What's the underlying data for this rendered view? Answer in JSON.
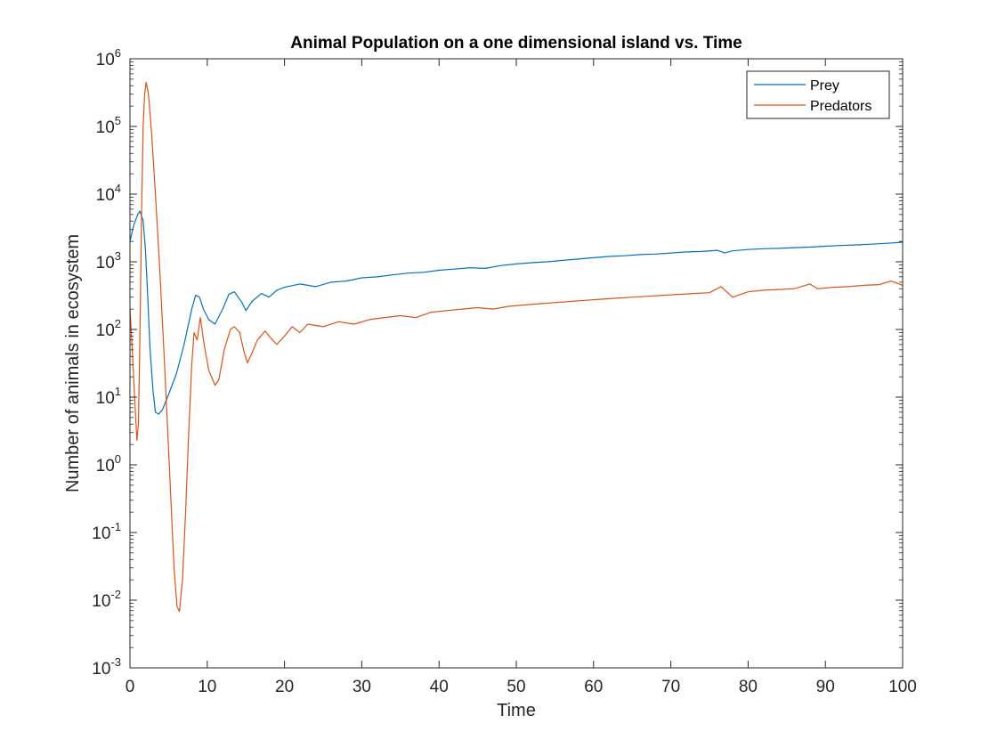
{
  "chart_data": {
    "type": "line",
    "title": "Animal Population on a one dimensional island vs. Time",
    "xlabel": "Time",
    "ylabel": "Number of animals in ecosystem",
    "xlim": [
      0,
      100
    ],
    "ylim": [
      0.001,
      1000000
    ],
    "yscale": "log",
    "grid": false,
    "legend_position": "top-right",
    "x_ticks": [
      0,
      10,
      20,
      30,
      40,
      50,
      60,
      70,
      80,
      90,
      100
    ],
    "y_ticks": [
      {
        "base": "10",
        "exp": "-3",
        "value": 0.001
      },
      {
        "base": "10",
        "exp": "-2",
        "value": 0.01
      },
      {
        "base": "10",
        "exp": "-1",
        "value": 0.1
      },
      {
        "base": "10",
        "exp": "0",
        "value": 1
      },
      {
        "base": "10",
        "exp": "1",
        "value": 10
      },
      {
        "base": "10",
        "exp": "2",
        "value": 100
      },
      {
        "base": "10",
        "exp": "3",
        "value": 1000
      },
      {
        "base": "10",
        "exp": "4",
        "value": 10000
      },
      {
        "base": "10",
        "exp": "5",
        "value": 100000
      },
      {
        "base": "10",
        "exp": "6",
        "value": 1000000
      }
    ],
    "series": [
      {
        "name": "Prey",
        "color": "#0072BD",
        "points": [
          [
            0,
            2000
          ],
          [
            0.5,
            3500
          ],
          [
            1,
            5000
          ],
          [
            1.3,
            5600
          ],
          [
            1.7,
            4000
          ],
          [
            2.0,
            1500
          ],
          [
            2.3,
            300
          ],
          [
            2.6,
            50
          ],
          [
            3.0,
            12
          ],
          [
            3.3,
            6
          ],
          [
            3.7,
            5.6
          ],
          [
            4.2,
            6.5
          ],
          [
            5,
            11
          ],
          [
            6,
            22
          ],
          [
            7,
            60
          ],
          [
            8,
            200
          ],
          [
            8.5,
            320
          ],
          [
            9,
            300
          ],
          [
            9.5,
            200
          ],
          [
            10.2,
            140
          ],
          [
            11,
            120
          ],
          [
            12,
            200
          ],
          [
            12.8,
            330
          ],
          [
            13.5,
            360
          ],
          [
            14.5,
            250
          ],
          [
            15,
            190
          ],
          [
            15.8,
            260
          ],
          [
            17,
            340
          ],
          [
            18,
            300
          ],
          [
            19,
            380
          ],
          [
            20,
            420
          ],
          [
            22,
            470
          ],
          [
            24,
            430
          ],
          [
            26,
            500
          ],
          [
            28,
            520
          ],
          [
            30,
            580
          ],
          [
            32,
            600
          ],
          [
            34,
            640
          ],
          [
            36,
            680
          ],
          [
            38,
            700
          ],
          [
            40,
            750
          ],
          [
            42,
            780
          ],
          [
            44,
            820
          ],
          [
            46,
            800
          ],
          [
            48,
            880
          ],
          [
            50,
            930
          ],
          [
            52,
            970
          ],
          [
            54,
            1000
          ],
          [
            56,
            1050
          ],
          [
            58,
            1100
          ],
          [
            60,
            1150
          ],
          [
            62,
            1200
          ],
          [
            64,
            1230
          ],
          [
            66,
            1280
          ],
          [
            68,
            1300
          ],
          [
            70,
            1350
          ],
          [
            72,
            1400
          ],
          [
            74,
            1420
          ],
          [
            76,
            1480
          ],
          [
            77,
            1350
          ],
          [
            78,
            1450
          ],
          [
            80,
            1520
          ],
          [
            82,
            1560
          ],
          [
            84,
            1580
          ],
          [
            86,
            1620
          ],
          [
            88,
            1650
          ],
          [
            90,
            1700
          ],
          [
            92,
            1740
          ],
          [
            94,
            1780
          ],
          [
            96,
            1820
          ],
          [
            98,
            1880
          ],
          [
            100,
            1950
          ]
        ]
      },
      {
        "name": "Predators",
        "color": "#D95319",
        "points": [
          [
            0,
            200
          ],
          [
            0.3,
            50
          ],
          [
            0.6,
            10
          ],
          [
            0.9,
            2.3
          ],
          [
            1.1,
            4
          ],
          [
            1.3,
            100
          ],
          [
            1.5,
            5000
          ],
          [
            1.7,
            100000
          ],
          [
            1.9,
            300000
          ],
          [
            2.1,
            450000
          ],
          [
            2.4,
            300000
          ],
          [
            2.8,
            80000
          ],
          [
            3.3,
            10000
          ],
          [
            3.8,
            1000
          ],
          [
            4.3,
            80
          ],
          [
            4.8,
            5
          ],
          [
            5.3,
            0.3
          ],
          [
            5.7,
            0.03
          ],
          [
            6.1,
            0.008
          ],
          [
            6.4,
            0.0068
          ],
          [
            6.8,
            0.02
          ],
          [
            7.2,
            0.2
          ],
          [
            7.6,
            3
          ],
          [
            8.0,
            30
          ],
          [
            8.3,
            90
          ],
          [
            8.7,
            70
          ],
          [
            9.1,
            150
          ],
          [
            9.6,
            60
          ],
          [
            10.2,
            25
          ],
          [
            11,
            15
          ],
          [
            11.5,
            18
          ],
          [
            12.2,
            50
          ],
          [
            13,
            100
          ],
          [
            13.5,
            110
          ],
          [
            14.2,
            90
          ],
          [
            14.7,
            50
          ],
          [
            15.2,
            32
          ],
          [
            15.8,
            45
          ],
          [
            16.5,
            70
          ],
          [
            17.5,
            95
          ],
          [
            18,
            80
          ],
          [
            19,
            60
          ],
          [
            20,
            80
          ],
          [
            21,
            110
          ],
          [
            22,
            90
          ],
          [
            23,
            120
          ],
          [
            25,
            110
          ],
          [
            27,
            130
          ],
          [
            29,
            120
          ],
          [
            31,
            140
          ],
          [
            33,
            150
          ],
          [
            35,
            160
          ],
          [
            37,
            150
          ],
          [
            39,
            180
          ],
          [
            41,
            190
          ],
          [
            43,
            200
          ],
          [
            45,
            210
          ],
          [
            47,
            200
          ],
          [
            49,
            220
          ],
          [
            51,
            230
          ],
          [
            53,
            240
          ],
          [
            55,
            250
          ],
          [
            57,
            260
          ],
          [
            59,
            270
          ],
          [
            61,
            280
          ],
          [
            63,
            290
          ],
          [
            65,
            300
          ],
          [
            67,
            310
          ],
          [
            69,
            320
          ],
          [
            71,
            330
          ],
          [
            73,
            340
          ],
          [
            75,
            350
          ],
          [
            76.5,
            430
          ],
          [
            78,
            300
          ],
          [
            80,
            360
          ],
          [
            82,
            380
          ],
          [
            84,
            390
          ],
          [
            86,
            400
          ],
          [
            88,
            470
          ],
          [
            89,
            400
          ],
          [
            91,
            420
          ],
          [
            93,
            430
          ],
          [
            95,
            450
          ],
          [
            97,
            460
          ],
          [
            98.5,
            520
          ],
          [
            100,
            450
          ]
        ]
      }
    ]
  }
}
